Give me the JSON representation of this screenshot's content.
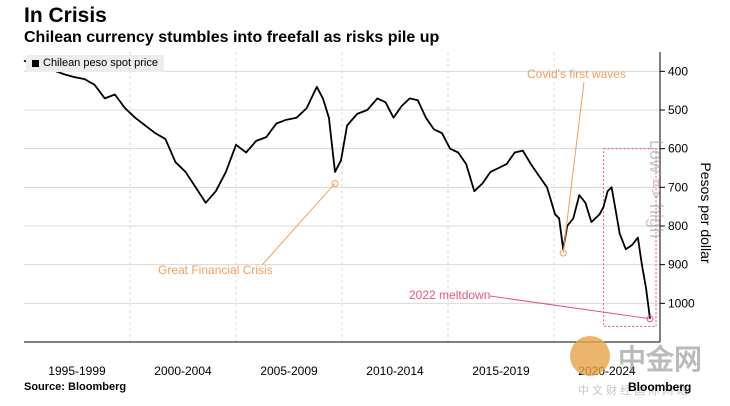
{
  "header": {
    "title": "In Crisis",
    "subtitle": "Chilean currency stumbles into freefall as risks pile up"
  },
  "footer": {
    "source": "Source: Bloomberg",
    "brand": "Bloomberg"
  },
  "watermark": {
    "overlay_text": "Low => high",
    "logo_text": "中金网",
    "sub_text": "中 文 财 经 国 际 网 站"
  },
  "colors": {
    "line": "#000000",
    "annotation": "#f0a060",
    "meltdown": "#e8557a",
    "grid": "#d9d9d9"
  },
  "chart_data": {
    "type": "line",
    "title": "In Crisis",
    "subtitle": "Chilean currency stumbles into freefall as risks pile up",
    "ylabel": "Pesos per dollar",
    "y_inverted": true,
    "ylim": [
      1100,
      350
    ],
    "yticks": [
      400,
      500,
      600,
      700,
      800,
      900,
      1000
    ],
    "xlabels": [
      "1995-1999",
      "2000-2004",
      "2005-2009",
      "2010-2014",
      "2015-2019",
      "2020-2024"
    ],
    "grid": true,
    "legend": {
      "position": "top-left",
      "entries": [
        "Chilean peso spot price"
      ]
    },
    "series": [
      {
        "name": "Chilean peso spot price",
        "x": [
          1993.5,
          1994.0,
          1994.5,
          1995.0,
          1995.5,
          1996.0,
          1996.5,
          1997.0,
          1997.5,
          1998.0,
          1998.5,
          1999.0,
          1999.5,
          2000.0,
          2000.5,
          2001.0,
          2001.5,
          2002.0,
          2002.5,
          2003.0,
          2003.5,
          2004.0,
          2004.5,
          2005.0,
          2005.5,
          2006.0,
          2006.5,
          2007.0,
          2007.5,
          2008.0,
          2008.3,
          2008.6,
          2008.9,
          2009.2,
          2009.5,
          2010.0,
          2010.5,
          2011.0,
          2011.4,
          2011.8,
          2012.2,
          2012.6,
          2013.0,
          2013.4,
          2013.8,
          2014.2,
          2014.6,
          2015.0,
          2015.4,
          2015.8,
          2016.2,
          2016.6,
          2017.0,
          2017.4,
          2017.8,
          2018.2,
          2018.6,
          2019.0,
          2019.4,
          2019.8,
          2020.0,
          2020.2,
          2020.4,
          2020.7,
          2021.0,
          2021.3,
          2021.6,
          2022.0,
          2022.2,
          2022.4,
          2022.6,
          2022.8,
          2023.0,
          2023.3,
          2023.6,
          2023.9,
          2024.1,
          2024.3,
          2024.5
        ],
        "values": [
          372,
          385,
          395,
          398,
          408,
          415,
          420,
          435,
          470,
          460,
          495,
          520,
          540,
          560,
          575,
          635,
          660,
          700,
          740,
          710,
          660,
          590,
          610,
          580,
          570,
          535,
          525,
          520,
          495,
          440,
          470,
          520,
          660,
          630,
          540,
          510,
          500,
          470,
          480,
          520,
          490,
          470,
          475,
          520,
          550,
          560,
          600,
          610,
          640,
          710,
          690,
          660,
          650,
          640,
          610,
          605,
          640,
          670,
          700,
          770,
          780,
          860,
          800,
          780,
          720,
          740,
          790,
          770,
          750,
          710,
          700,
          760,
          820,
          860,
          850,
          830,
          900,
          960,
          1040
        ]
      }
    ],
    "annotations": [
      {
        "text": "Great Financial Crisis",
        "x": 2008.9,
        "y": 690
      },
      {
        "text": "Covid's first waves",
        "x": 2020.2,
        "y": 870
      },
      {
        "text": "2022 meltdown",
        "x": 2024.5,
        "y": 1040
      }
    ]
  }
}
